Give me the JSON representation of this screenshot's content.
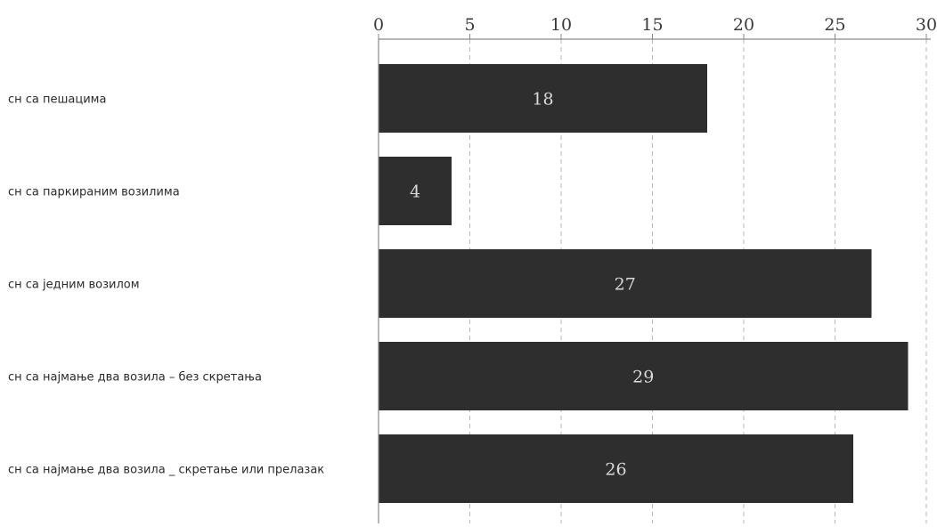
{
  "chart_data": {
    "type": "bar",
    "orientation": "horizontal",
    "categories": [
      "сн са пешацима",
      "сн са паркираним возилима",
      "сн са једним возилом",
      "сн са најмање два возила – без скретања",
      "сн са најмање два возила _ скретање или прелазак"
    ],
    "values": [
      18,
      4,
      27,
      29,
      26
    ],
    "data_labels": [
      "18",
      "4",
      "27",
      "29",
      "26"
    ],
    "x_ticks": [
      "0",
      "5",
      "10",
      "15",
      "20",
      "25",
      "30"
    ],
    "xlim": [
      0,
      30
    ],
    "x_axis_position": "top",
    "grid": "vertical-dashed",
    "bar_color": "#2e2e2e",
    "label_color": "#d9d9d9",
    "legend": "none"
  }
}
